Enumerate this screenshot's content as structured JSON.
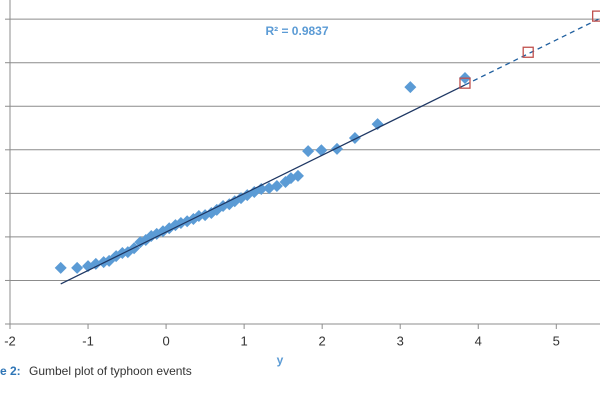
{
  "chart_data": {
    "type": "scatter",
    "annotation": "R² = 0.9837",
    "x_label": "y",
    "caption_label": "e 2:",
    "caption_text": "Gumbel plot of typhoon events",
    "xlim": [
      -2,
      5.56
    ],
    "xticks": [
      -2,
      -1,
      0,
      1,
      2,
      3,
      4,
      5
    ],
    "ylim": [
      0,
      7.44
    ],
    "yticks": [
      0,
      1,
      2,
      3,
      4,
      5,
      6,
      7
    ],
    "grid": true,
    "series": [
      {
        "color": "#5b9bd5",
        "marker": "diamond",
        "x": [
          -1.35,
          -1.14,
          -1.0,
          -0.9,
          -0.8,
          -0.73,
          -0.64,
          -0.56,
          -0.49,
          -0.41,
          -0.33,
          -0.26,
          -0.19,
          -0.12,
          -0.04,
          0.04,
          0.12,
          0.19,
          0.27,
          0.35,
          0.42,
          0.5,
          0.58,
          0.65,
          0.73,
          0.81,
          0.88,
          0.96,
          1.04,
          1.13,
          1.22,
          1.32,
          1.42,
          1.53,
          1.6,
          1.69,
          1.82,
          1.99,
          2.19,
          2.42,
          2.71,
          3.13,
          3.83
        ],
        "y": [
          1.29,
          1.29,
          1.33,
          1.38,
          1.42,
          1.45,
          1.56,
          1.63,
          1.65,
          1.74,
          1.88,
          1.93,
          2.02,
          2.07,
          2.13,
          2.2,
          2.27,
          2.32,
          2.36,
          2.41,
          2.48,
          2.5,
          2.55,
          2.62,
          2.71,
          2.75,
          2.82,
          2.89,
          2.96,
          3.03,
          3.1,
          3.12,
          3.17,
          3.26,
          3.35,
          3.4,
          3.97,
          3.99,
          4.02,
          4.27,
          4.59,
          5.44,
          5.65
        ]
      },
      {
        "color": "#1f3864",
        "line": "solid",
        "x": [
          -1.35,
          3.83
        ],
        "y": [
          0.92,
          5.49
        ]
      },
      {
        "color": "#1f5f9f",
        "line": "dashed",
        "x": [
          3.83,
          5.54
        ],
        "y": [
          5.49,
          7.0
        ]
      },
      {
        "color": "#c0504d",
        "marker": "square-open",
        "x": [
          3.83,
          4.64,
          5.53
        ],
        "y": [
          5.53,
          6.24,
          7.07
        ]
      }
    ]
  }
}
